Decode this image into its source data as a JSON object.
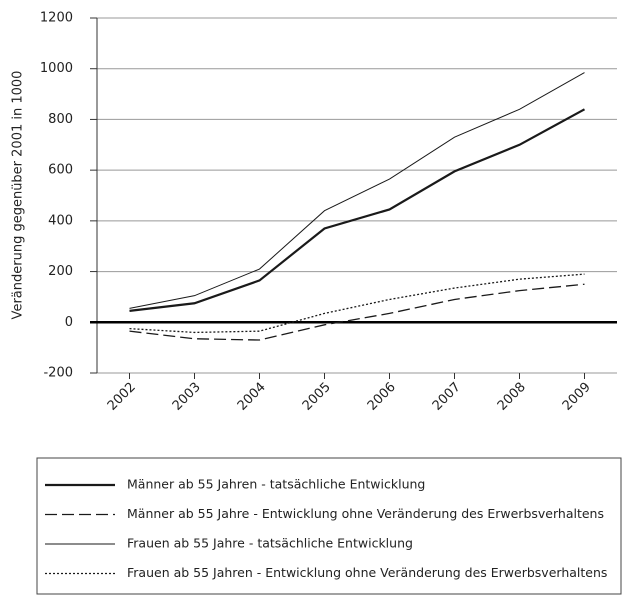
{
  "chart_data": {
    "type": "line",
    "y_label": "Veränderung gegenüber 2001 in 1000",
    "categories": [
      "2002",
      "2003",
      "2004",
      "2005",
      "2006",
      "2007",
      "2008",
      "2009"
    ],
    "series": [
      {
        "name": "Männer ab 55 Jahren - tatsächliche Entwicklung",
        "color": "#1a1a1a",
        "line_style": "thick",
        "values": [
          45,
          75,
          165,
          370,
          445,
          595,
          700,
          840
        ]
      },
      {
        "name": "Männer ab 55 Jahre - Entwicklung ohne Veränderung des Erwerbsverhaltens",
        "color": "#1a1a1a",
        "line_style": "dashed",
        "values": [
          -35,
          -65,
          -70,
          -10,
          35,
          90,
          125,
          150
        ]
      },
      {
        "name": "Frauen ab 55 Jahre - tatsächliche Entwicklung",
        "color": "#1a1a1a",
        "line_style": "thin",
        "values": [
          55,
          105,
          210,
          440,
          565,
          730,
          840,
          985
        ]
      },
      {
        "name": "Frauen ab 55 Jahren - Entwicklung ohne Veränderung des Erwerbsverhaltens",
        "color": "#1a1a1a",
        "line_style": "dotted",
        "values": [
          -25,
          -40,
          -35,
          35,
          90,
          135,
          170,
          190
        ]
      }
    ],
    "ylim": [
      -200,
      1200
    ],
    "yticks": [
      -200,
      0,
      200,
      400,
      600,
      800,
      1000,
      1200
    ],
    "grid": true,
    "legend": "bottom"
  }
}
